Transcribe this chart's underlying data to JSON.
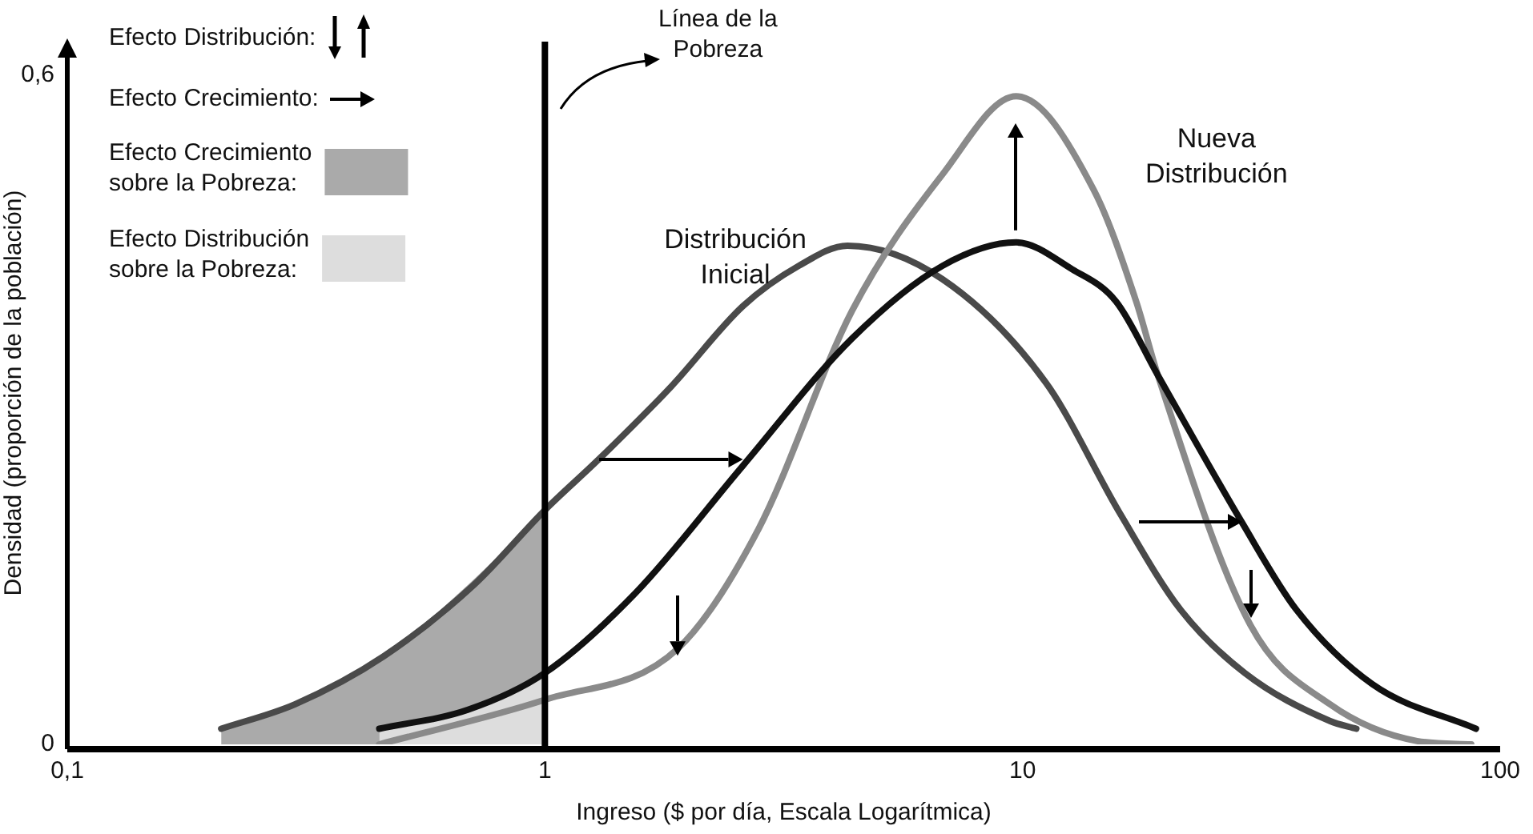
{
  "chart_data": {
    "type": "line",
    "xlabel": "Ingreso ($ por día, Escala Logarítmica)",
    "ylabel": "Densidad (proporción de la población)",
    "log": "x",
    "xlim": [
      0.1,
      100
    ],
    "ylim": [
      0,
      0.63
    ],
    "xticks": [
      {
        "value": 0.1,
        "label": "0,1"
      },
      1,
      10,
      100
    ],
    "yticks": [
      0,
      {
        "value": 0.6,
        "label": "0,6"
      }
    ],
    "legend": "top left",
    "series": [
      {
        "color": "#4a4a4a",
        "x": [
          0.21,
          0.3,
          0.46,
          0.71,
          1.0,
          1.3,
          1.84,
          2.6,
          3.4,
          4.3,
          6.8,
          11.2,
          16,
          21.4,
          29.2,
          44,
          50
        ],
        "values": [
          0.014,
          0.036,
          0.079,
          0.143,
          0.21,
          0.256,
          0.321,
          0.393,
          0.429,
          0.447,
          0.417,
          0.324,
          0.207,
          0.121,
          0.064,
          0.021,
          0.014
        ]
      },
      {
        "color": "#8a8a8a",
        "x": [
          0.45,
          1.0,
          1.9,
          2.8,
          4.4,
          6.8,
          9.7,
          14.1,
          17.3,
          19.2,
          30,
          44,
          67,
          87
        ],
        "values": [
          0,
          0.04,
          0.086,
          0.193,
          0.389,
          0.511,
          0.581,
          0.497,
          0.397,
          0.331,
          0.107,
          0.036,
          0.003,
          0
        ]
      },
      {
        "color": "#111111",
        "x": [
          0.45,
          0.69,
          1.0,
          1.55,
          2.6,
          4.4,
          6.8,
          9.7,
          12.7,
          15.7,
          19.2,
          28.8,
          37.4,
          54,
          89
        ],
        "values": [
          0.014,
          0.031,
          0.064,
          0.136,
          0.25,
          0.364,
          0.429,
          0.45,
          0.426,
          0.397,
          0.331,
          0.199,
          0.121,
          0.054,
          0.014
        ]
      },
      {
        "type": "area",
        "name": "Efecto Crecimiento sobre la Pobreza:",
        "color": "#aaaaaa",
        "x": [
          0.21,
          0.3,
          0.46,
          0.69,
          1.0
        ],
        "values": [
          0.014,
          0.036,
          0.079,
          0.143,
          0.21
        ]
      },
      {
        "type": "area",
        "name": "Efecto Distribución sobre la Pobreza:",
        "color": "#dddddd",
        "x": [
          0.45,
          0.69,
          1.0
        ],
        "values": [
          0.014,
          0.031,
          0.064
        ]
      }
    ],
    "ref_lines": [
      {
        "axis": "x",
        "value": 1,
        "label": "Línea de la Pobreza",
        "color": "#000000"
      }
    ],
    "annotations": [
      "Efecto Distribución:",
      "Efecto Crecimiento:",
      "Distribución Inicial",
      "Nueva Distribución"
    ]
  }
}
